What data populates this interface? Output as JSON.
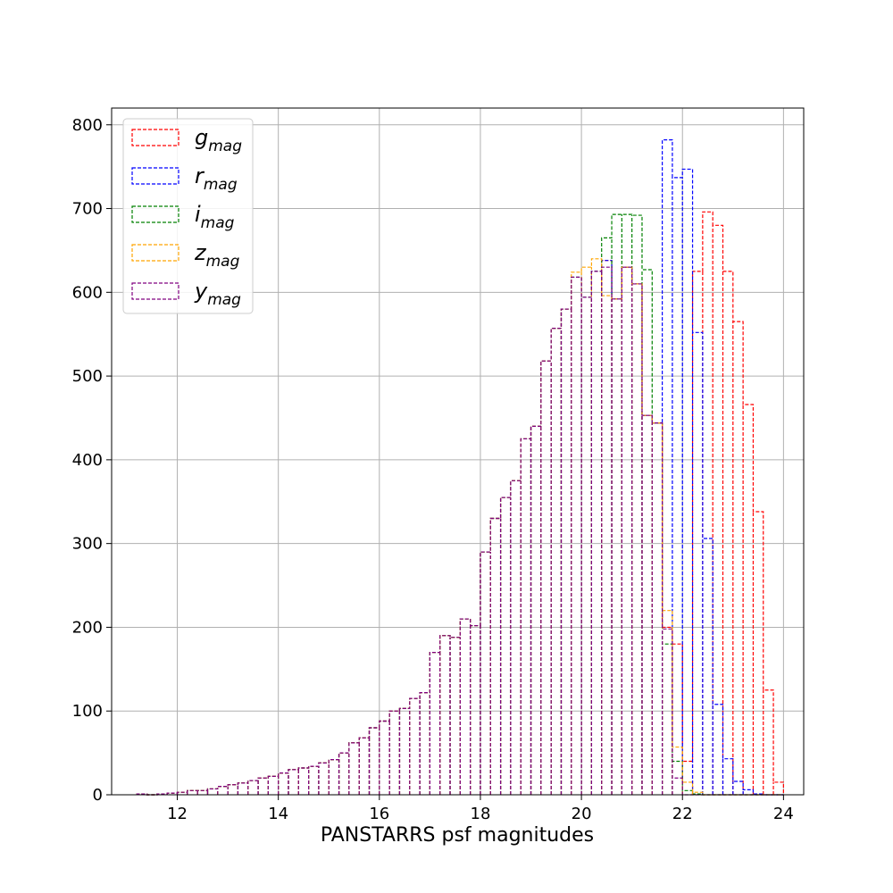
{
  "chart_data": {
    "type": "histogram",
    "xlabel": "PANSTARRS psf magnitudes",
    "ylabel": "",
    "xlim": [
      10.7,
      24.4
    ],
    "ylim": [
      0,
      820
    ],
    "xticks": [
      12,
      14,
      16,
      18,
      20,
      22,
      24
    ],
    "yticks": [
      0,
      100,
      200,
      300,
      400,
      500,
      600,
      700,
      800
    ],
    "grid": true,
    "legend_position": "top-left",
    "histtype": "step",
    "linestyle": "dashed",
    "bin_start": 11.2,
    "bin_width": 0.2,
    "series": [
      {
        "name": "g",
        "name_sub": "mag",
        "color": "#ff0000",
        "values": [
          1,
          0,
          1,
          2,
          3,
          5,
          5,
          7,
          10,
          12,
          14,
          17,
          20,
          22,
          26,
          30,
          32,
          34,
          38,
          42,
          50,
          62,
          68,
          80,
          88,
          100,
          103,
          115,
          122,
          170,
          190,
          188,
          210,
          202,
          290,
          330,
          355,
          375,
          425,
          440,
          518,
          557,
          580,
          618,
          594,
          625,
          638,
          592,
          630,
          610,
          453,
          444,
          200,
          180,
          40,
          625,
          696,
          680,
          625,
          565,
          466,
          338,
          125,
          15
        ]
      },
      {
        "name": "r",
        "name_sub": "mag",
        "color": "#0000ff",
        "values": [
          1,
          0,
          1,
          2,
          3,
          5,
          5,
          7,
          10,
          12,
          14,
          17,
          20,
          22,
          26,
          30,
          32,
          34,
          38,
          42,
          50,
          62,
          68,
          80,
          88,
          100,
          103,
          115,
          122,
          170,
          190,
          188,
          210,
          202,
          290,
          330,
          355,
          375,
          425,
          440,
          518,
          557,
          580,
          618,
          594,
          625,
          638,
          592,
          630,
          610,
          453,
          444,
          782,
          737,
          747,
          552,
          306,
          108,
          43,
          16,
          6,
          1,
          0,
          0
        ]
      },
      {
        "name": "i",
        "name_sub": "mag",
        "color": "#008000",
        "values": [
          1,
          0,
          1,
          2,
          3,
          5,
          5,
          7,
          10,
          12,
          14,
          17,
          20,
          22,
          26,
          30,
          32,
          34,
          38,
          42,
          50,
          62,
          68,
          80,
          88,
          100,
          103,
          115,
          122,
          170,
          190,
          188,
          210,
          202,
          290,
          330,
          355,
          375,
          425,
          440,
          518,
          557,
          580,
          618,
          594,
          625,
          665,
          693,
          693,
          692,
          627,
          444,
          180,
          40,
          5,
          1,
          0,
          0,
          0,
          0,
          0,
          0,
          0,
          0
        ]
      },
      {
        "name": "z",
        "name_sub": "mag",
        "color": "#ffa500",
        "values": [
          1,
          0,
          1,
          2,
          3,
          5,
          5,
          7,
          10,
          12,
          14,
          17,
          20,
          22,
          26,
          30,
          32,
          34,
          38,
          42,
          50,
          62,
          68,
          80,
          88,
          100,
          103,
          115,
          122,
          170,
          190,
          188,
          210,
          202,
          290,
          330,
          355,
          375,
          425,
          440,
          518,
          557,
          580,
          624,
          630,
          640,
          596,
          592,
          630,
          610,
          453,
          444,
          220,
          57,
          15,
          3,
          0,
          0,
          0,
          0,
          0,
          0,
          0,
          0
        ]
      },
      {
        "name": "y",
        "name_sub": "mag",
        "color": "#800080",
        "values": [
          1,
          0,
          1,
          2,
          3,
          5,
          5,
          7,
          10,
          12,
          14,
          17,
          20,
          22,
          26,
          30,
          32,
          34,
          38,
          42,
          50,
          62,
          68,
          80,
          88,
          100,
          103,
          115,
          122,
          170,
          190,
          188,
          210,
          202,
          290,
          330,
          355,
          375,
          425,
          440,
          518,
          557,
          580,
          618,
          594,
          625,
          630,
          592,
          630,
          610,
          453,
          444,
          198,
          20,
          0,
          0,
          0,
          0,
          0,
          0,
          0,
          0,
          0,
          0
        ]
      }
    ]
  }
}
